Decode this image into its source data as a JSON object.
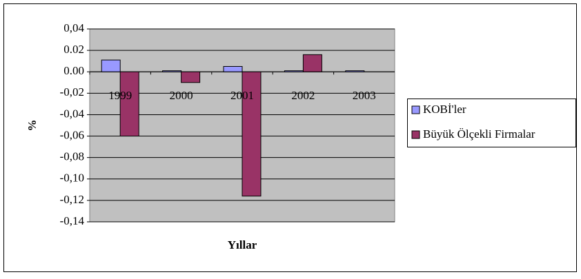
{
  "chart_data": {
    "type": "bar",
    "x_label": "Yıllar",
    "y_label": "%",
    "categories": [
      "1999",
      "2000",
      "2001",
      "2002",
      "2003"
    ],
    "series": [
      {
        "name": "KOBİ'ler",
        "color": "#9999ff",
        "values": [
          0.011,
          0.001,
          0.005,
          0.001,
          0.001
        ]
      },
      {
        "name": "Büyük Ölçekli Firmalar",
        "color": "#993366",
        "values": [
          -0.06,
          -0.01,
          -0.116,
          0.016,
          0
        ]
      }
    ],
    "ylim": [
      -0.14,
      0.04
    ],
    "yticks": [
      {
        "value": 0.04,
        "label": "0,04"
      },
      0.02,
      {
        "value": 0,
        "label": "0.00"
      },
      {
        "value": -0.02,
        "label": "-0,02"
      },
      {
        "value": -0.04,
        "label": "-0,04"
      },
      {
        "value": -0.06,
        "label": "-0,06"
      },
      {
        "value": -0.08,
        "label": "-0,08"
      },
      {
        "value": -0.1,
        "label": "-0,10"
      },
      {
        "value": -0.12,
        "label": "-0,12"
      },
      {
        "value": -0.14,
        "label": "-0,14"
      }
    ],
    "grid": true,
    "legend": "right"
  }
}
